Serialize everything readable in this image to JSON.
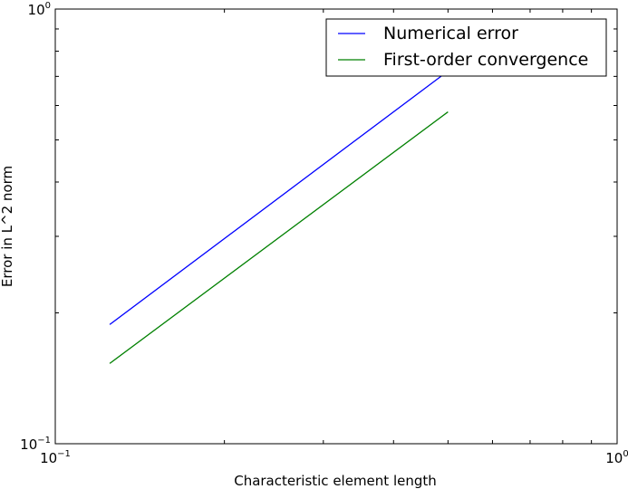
{
  "chart_data": {
    "type": "line",
    "xlabel": "Characteristic element length",
    "ylabel": "Error in L^2 norm",
    "xscale": "log",
    "yscale": "log",
    "xlim": [
      0.1,
      1.0
    ],
    "ylim": [
      0.1,
      1.0
    ],
    "x_ticks": [
      {
        "value": 0.1,
        "base": "10",
        "exp": "−1"
      },
      {
        "value": 1.0,
        "base": "10",
        "exp": "0"
      }
    ],
    "y_ticks": [
      {
        "value": 0.1,
        "base": "10",
        "exp": "−1"
      },
      {
        "value": 1.0,
        "base": "10",
        "exp": "0"
      }
    ],
    "grid": false,
    "legend_position": "top-right",
    "series": [
      {
        "name": "Numerical error",
        "color": "#0000ff",
        "x": [
          0.125,
          0.5
        ],
        "y": [
          0.188,
          0.72
        ]
      },
      {
        "name": "First-order convergence",
        "color": "#008000",
        "x": [
          0.125,
          0.5
        ],
        "y": [
          0.153,
          0.58
        ]
      }
    ]
  }
}
